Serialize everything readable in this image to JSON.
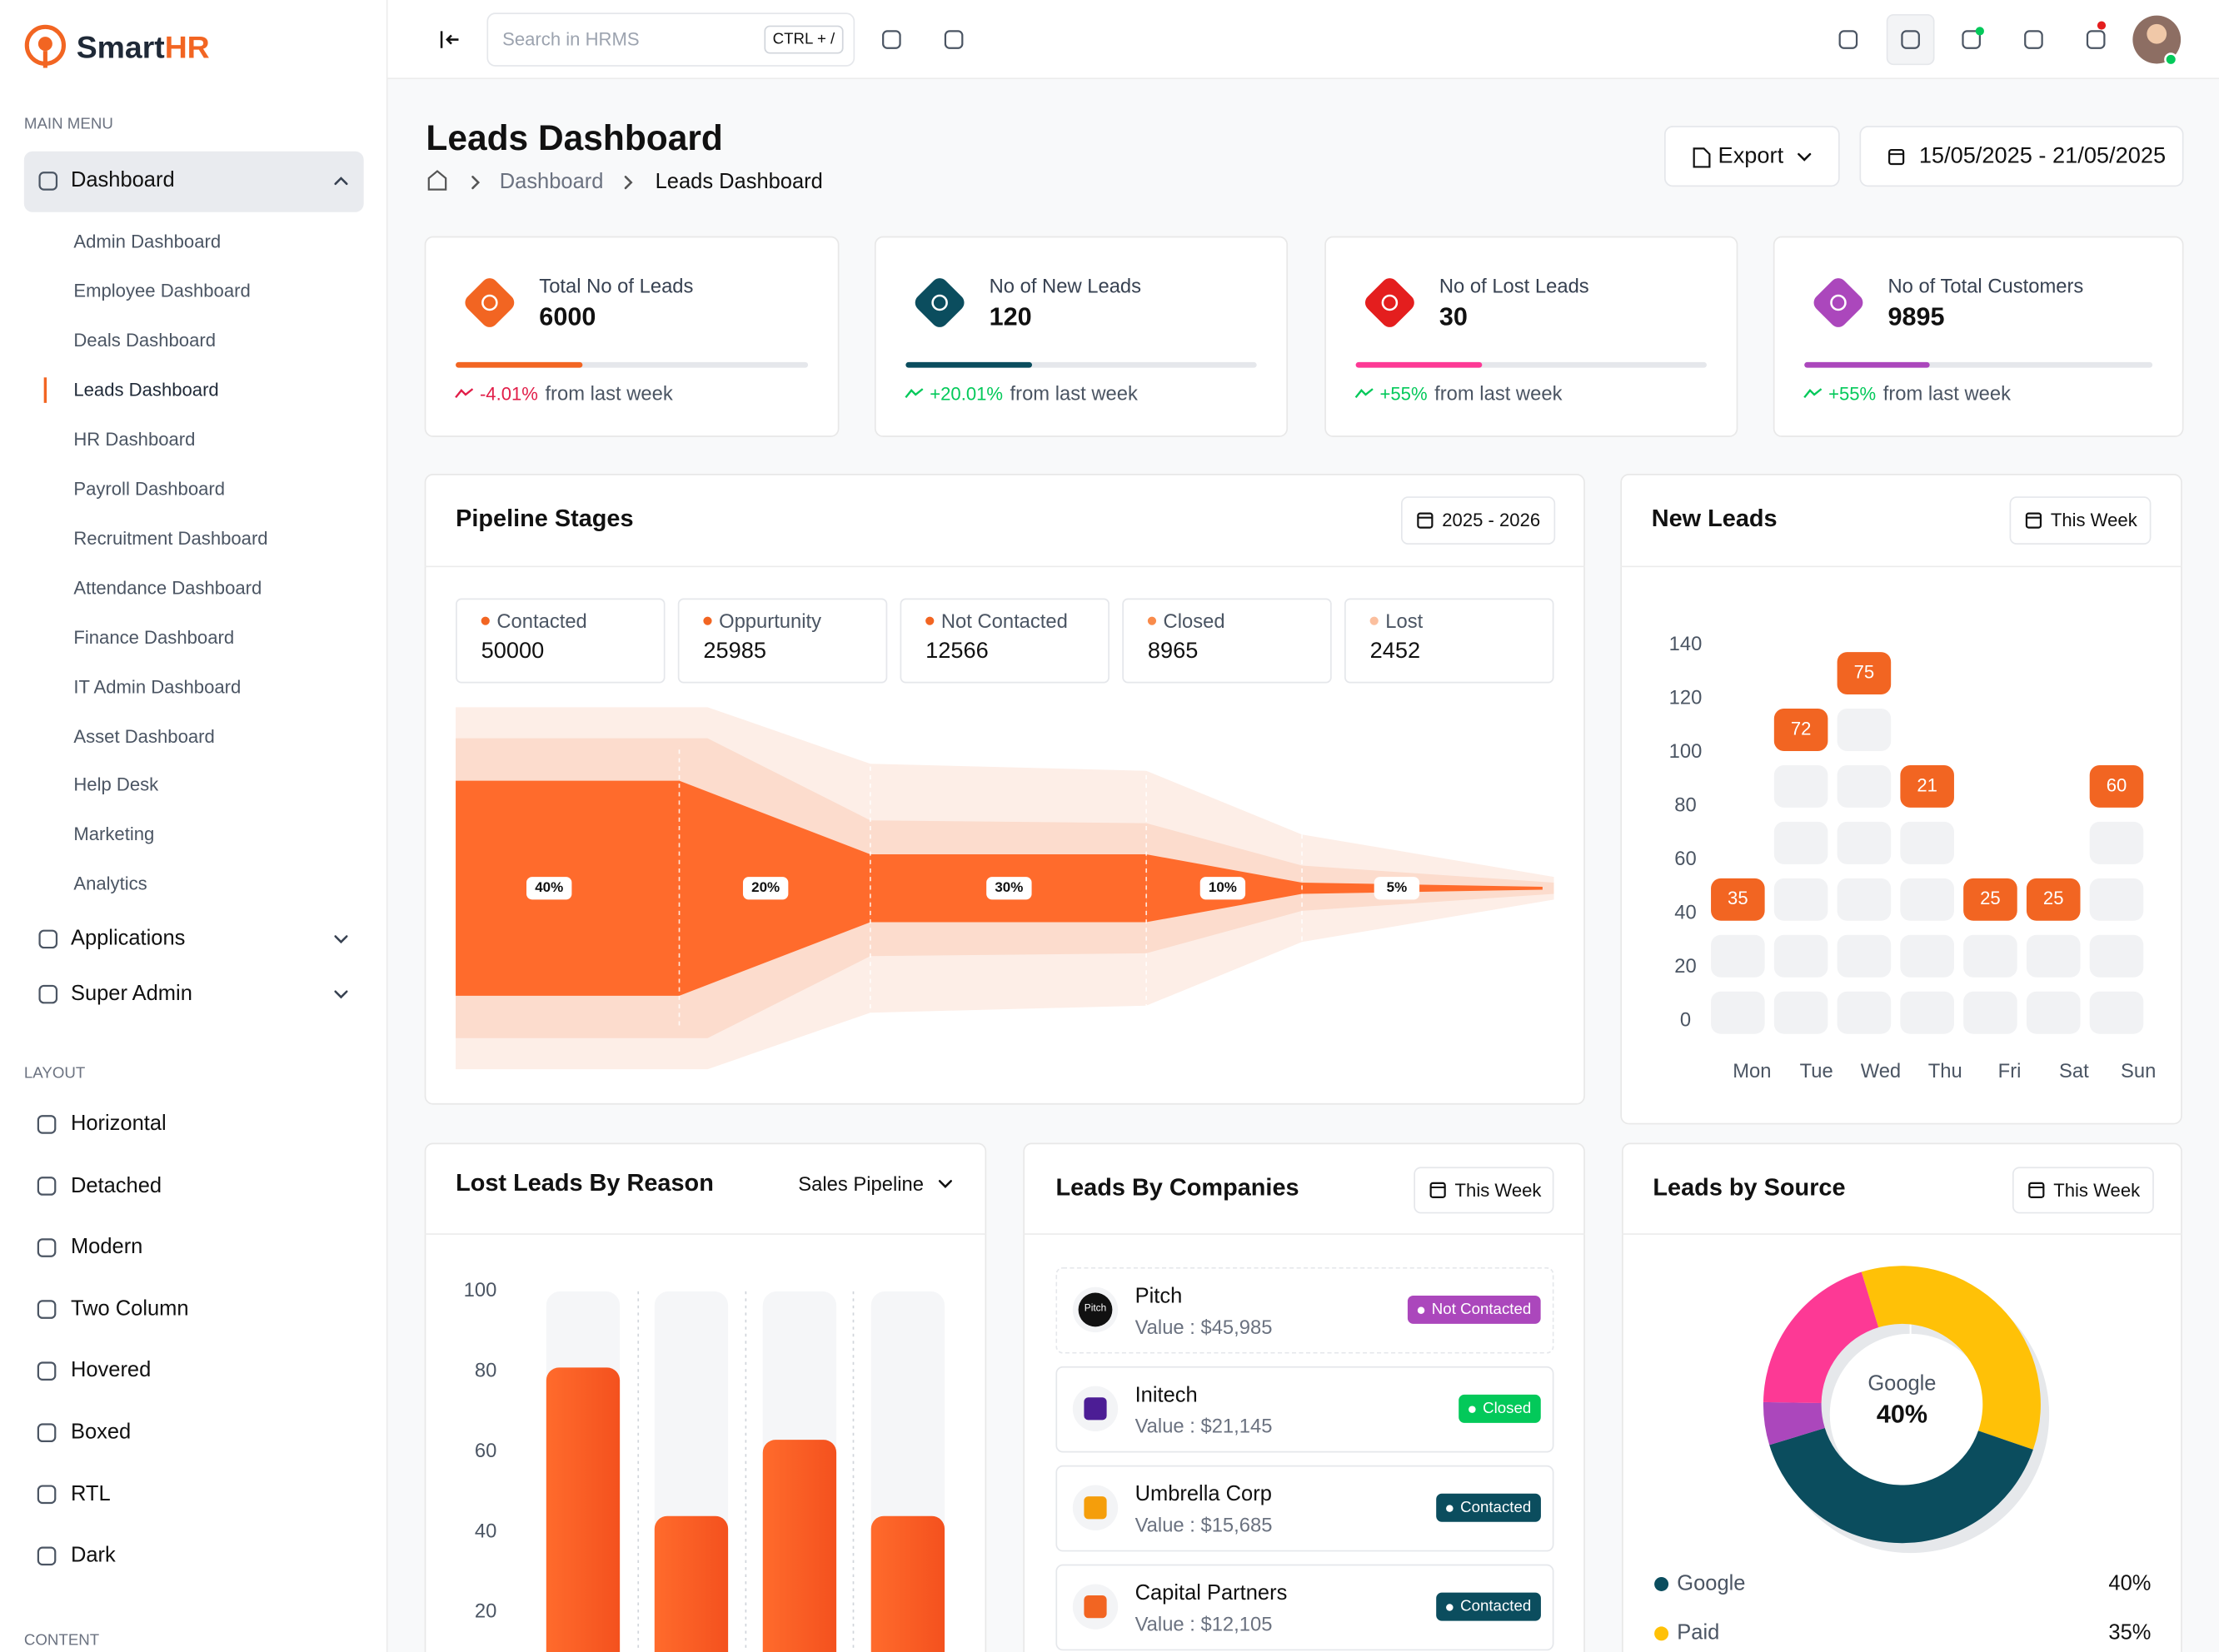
{
  "brand": {
    "name": "Smart",
    "accent": "HR"
  },
  "sidebar": {
    "main_menu": "MAIN MENU",
    "dashboard": "Dashboard",
    "dashboard_items": [
      "Admin Dashboard",
      "Employee Dashboard",
      "Deals Dashboard",
      "Leads Dashboard",
      "HR Dashboard",
      "Payroll Dashboard",
      "Recruitment Dashboard",
      "Attendance Dashboard",
      "Finance Dashboard",
      "IT Admin Dashboard",
      "Asset Dashboard",
      "Help Desk",
      "Marketing",
      "Analytics"
    ],
    "menus": [
      "Applications",
      "Super Admin"
    ],
    "layout_label": "LAYOUT",
    "layout_items": [
      "Horizontal",
      "Detached",
      "Modern",
      "Two Column",
      "Hovered",
      "Boxed",
      "RTL",
      "Dark"
    ],
    "content_label": "CONTENT"
  },
  "topbar": {
    "search_placeholder": "Search in HRMS",
    "shortcut": "CTRL + /"
  },
  "header": {
    "title": "Leads Dashboard",
    "breadcrumb": [
      "Dashboard",
      "Leads Dashboard"
    ],
    "export": "Export",
    "date_range": "15/05/2025 - 21/05/2025"
  },
  "stats": [
    {
      "label": "Total No of Leads",
      "value": 6000,
      "change": "-4.01%",
      "note": "from last week",
      "color": "#f26522",
      "bar_color": "#f26522",
      "change_color": "#e11d48",
      "progress": 36
    },
    {
      "label": "No of New Leads",
      "value": 120,
      "change": "+20.01%",
      "note": "from last week",
      "color": "#0b4d5e",
      "bar_color": "#0b4d5e",
      "change_color": "#03c95a",
      "progress": 36
    },
    {
      "label": "No of  Lost Leads",
      "value": 30,
      "change": "+55%",
      "note": "from last week",
      "color": "#e41e1e",
      "bar_color": "#fd3995",
      "change_color": "#03c95a",
      "progress": 36
    },
    {
      "label": "No of  Total Customers",
      "value": 9895,
      "change": "+55%",
      "note": "from last week",
      "color": "#ab47bc",
      "bar_color": "#ab47bc",
      "change_color": "#03c95a",
      "progress": 36
    }
  ],
  "pipeline": {
    "title": "Pipeline Stages",
    "period": "2025 - 2026",
    "stages": [
      {
        "name": "Contacted",
        "value": 50000,
        "color": "#f26522"
      },
      {
        "name": "Oppurtunity",
        "value": 25985,
        "color": "#f26522"
      },
      {
        "name": "Not Contacted",
        "value": 12566,
        "color": "#f26522"
      },
      {
        "name": "Closed",
        "value": 8965,
        "color": "#f98b4b"
      },
      {
        "name": "Lost",
        "value": 2452,
        "color": "#fbbf9e"
      }
    ],
    "funnel": {
      "type": "funnel",
      "values": [
        40,
        20,
        30,
        10,
        5
      ],
      "value_labels": [
        "40%",
        "20%",
        "30%",
        "10%",
        "5%"
      ],
      "color": "#ff6b2c"
    }
  },
  "new_leads": {
    "type": "heatmap",
    "title": "New Leads",
    "period": "This Week",
    "categories": [
      "Mon",
      "Tue",
      "Wed",
      "Thu",
      "Fri",
      "Sat",
      "Sun"
    ],
    "values": [
      35,
      72,
      75,
      21,
      25,
      25,
      60
    ],
    "cells": [
      3,
      6,
      7,
      5,
      3,
      3,
      5
    ],
    "ylim": [
      0,
      140
    ],
    "yticks": [
      0,
      20,
      40,
      60,
      80,
      100,
      120,
      140
    ],
    "color": "#f26522"
  },
  "lost_leads": {
    "type": "bar",
    "title": "Lost Leads By Reason",
    "filter": "Sales Pipeline",
    "values": [
      81,
      44,
      63,
      44
    ],
    "ylim": [
      0,
      100
    ],
    "yticks": [
      20,
      40,
      60,
      80,
      100
    ],
    "color": "#ff6b2c"
  },
  "companies": {
    "title": "Leads By Companies",
    "period": "This Week",
    "items": [
      {
        "name": "Pitch",
        "value": "Value : $45,985",
        "status": "Not Contacted",
        "status_color": "#ab47bc"
      },
      {
        "name": "Initech",
        "value": "Value : $21,145",
        "status": "Closed",
        "status_color": "#03c95a"
      },
      {
        "name": "Umbrella Corp",
        "value": "Value : $15,685",
        "status": "Contacted",
        "status_color": "#0b4d5e"
      },
      {
        "name": "Capital Partners",
        "value": "Value : $12,105",
        "status": "Contacted",
        "status_color": "#0b4d5e"
      }
    ]
  },
  "source": {
    "type": "pie",
    "title": "Leads by Source",
    "period": "This Week",
    "categories": [
      "Google",
      "Paid",
      null,
      null
    ],
    "values": [
      40,
      35,
      5,
      20
    ],
    "value_labels": [
      "40%",
      "35%",
      null,
      null
    ],
    "colors": [
      "#0b4d5e",
      "#ffc107",
      "#ab47bc",
      "#fd3995"
    ]
  }
}
